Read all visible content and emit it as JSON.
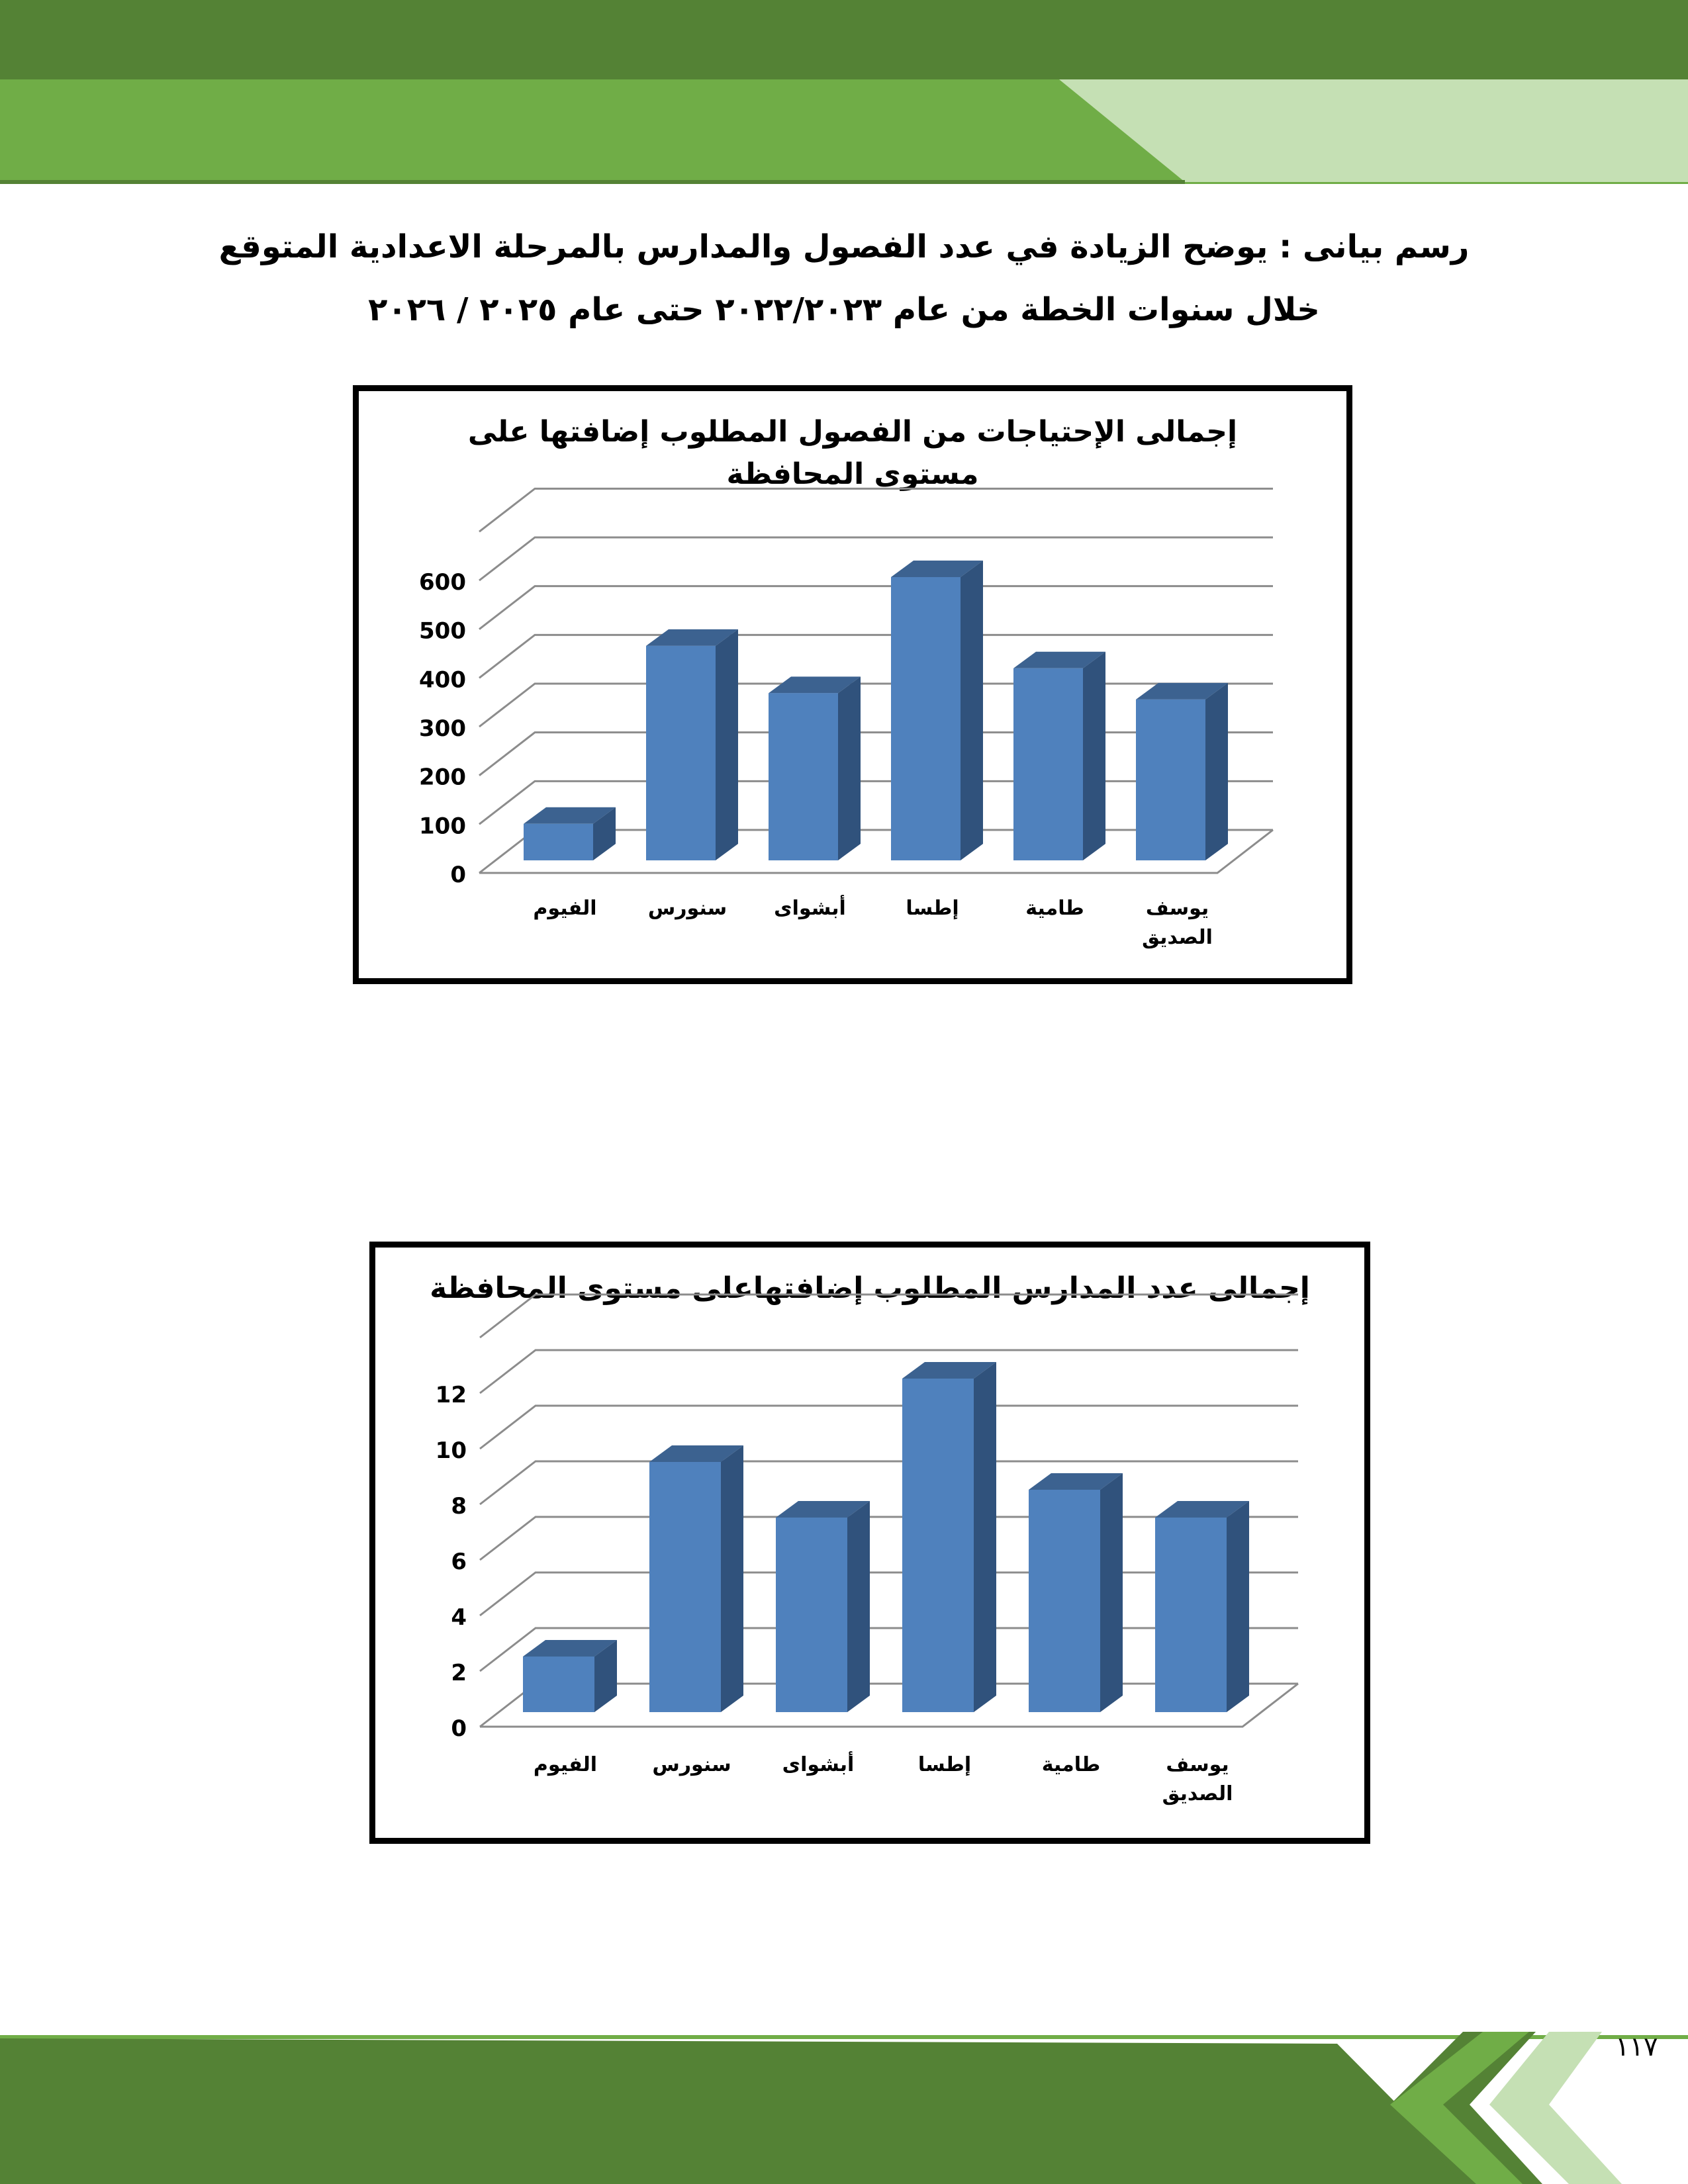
{
  "header": {
    "colors": {
      "dark": "#548235",
      "mid": "#70ad47",
      "light": "#c5e0b4"
    }
  },
  "heading": {
    "line1": "رسم بيانى :  يوضح الزيادة في عدد الفصول والمدارس بالمرحلة الاعدادية المتوقع",
    "line2": "خلال سنوات الخطة من عام ٢٠٢٢/٢٠٢٣ حتى عام ٢٠٢٥ / ٢٠٢٦"
  },
  "chart_data": [
    {
      "type": "bar",
      "title": "إجمالى الإحتياجات من الفصول المطلوب إضافتها على مستوى المحافظة",
      "categories": [
        "الفيوم",
        "سنورس",
        "أبشواى",
        "إطسا",
        "طامية",
        "يوسف الصديق"
      ],
      "values": [
        75,
        440,
        343,
        581,
        394,
        330
      ],
      "yticks": [
        "0",
        "100",
        "200",
        "300",
        "400",
        "500",
        "600"
      ],
      "ylim": [
        0,
        700
      ],
      "grid": true,
      "style": "3d-column",
      "color": "#4f81bd"
    },
    {
      "type": "bar",
      "title": "إجمالى عدد المدارس المطلوب إضافتهاعلى مستوى المحافظة",
      "categories": [
        "الفيوم",
        "سنورس",
        "أبشواى",
        "إطسا",
        "طامية",
        "يوسف الصديق"
      ],
      "values": [
        2,
        9,
        7,
        12,
        8,
        7
      ],
      "yticks": [
        "0",
        "2",
        "4",
        "6",
        "8",
        "10",
        "12"
      ],
      "ylim": [
        0,
        14
      ],
      "grid": true,
      "style": "3d-column",
      "color": "#4f81bd"
    }
  ],
  "footer": {
    "page_number": "١١٧"
  }
}
